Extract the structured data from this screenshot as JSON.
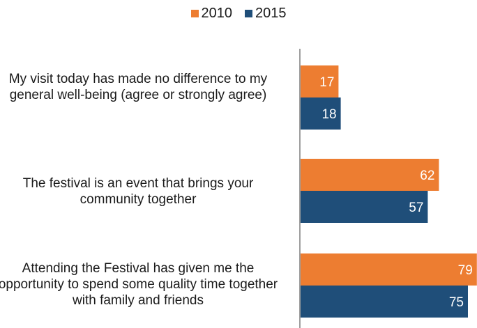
{
  "chart_data": {
    "type": "bar",
    "orientation": "horizontal",
    "categories": [
      "My visit today has made no difference to my general well-being (agree or strongly agree)",
      "The festival is an event that brings your community together",
      "Attending the Festival has given me the opportunity to spend some quality time together with family and friends"
    ],
    "series": [
      {
        "name": "2010",
        "values": [
          17,
          62,
          79
        ],
        "color": "#ED7D31"
      },
      {
        "name": "2015",
        "values": [
          18,
          57,
          75
        ],
        "color": "#1F4E79"
      }
    ],
    "data_labels": true,
    "legend_position": "top",
    "grid": false,
    "xlim": [
      0,
      80
    ]
  }
}
